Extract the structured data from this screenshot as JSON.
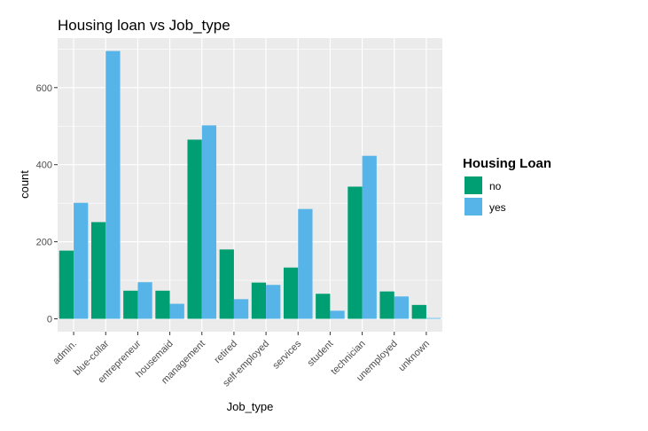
{
  "chart_data": {
    "type": "bar",
    "title": "Housing loan vs Job_type",
    "xlabel": "Job_type",
    "ylabel": "count",
    "categories": [
      "admin.",
      "blue-collar",
      "entrepreneur",
      "housemaid",
      "management",
      "retired",
      "self-employed",
      "services",
      "student",
      "technician",
      "unemployed",
      "unknown"
    ],
    "series": [
      {
        "name": "no",
        "values": [
          177,
          251,
          73,
          73,
          465,
          180,
          94,
          133,
          65,
          343,
          71,
          36
        ]
      },
      {
        "name": "yes",
        "values": [
          301,
          695,
          95,
          39,
          502,
          51,
          88,
          285,
          21,
          423,
          58,
          2
        ]
      }
    ],
    "ylim": [
      0,
      720
    ],
    "yticks": [
      0,
      200,
      400,
      600
    ],
    "legend": {
      "title": "Housing Loan",
      "position": "right"
    },
    "grid": true,
    "colors": {
      "no": "#009E73",
      "yes": "#56B4E9",
      "panel": "#EBEBEB",
      "grid": "#FFFFFF"
    }
  }
}
